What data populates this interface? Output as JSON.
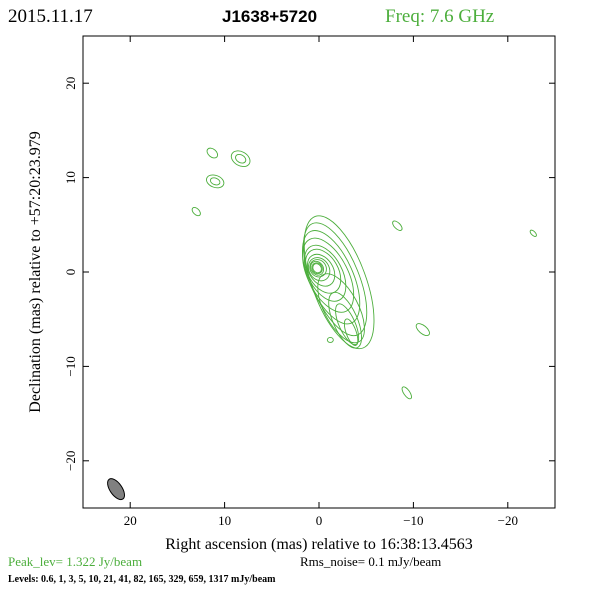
{
  "header": {
    "date": "2015.11.17",
    "source": "J1638+5720",
    "freq": "Freq: 7.6 GHz"
  },
  "footer": {
    "peak": "Peak_lev=  1.322 Jy/beam",
    "rms": "Rms_noise=  0.1 mJy/beam",
    "levels": "Levels: 0.6,   1,   3,   5,   10,   21,   41,   82,  165,  329,  659,  1317 mJy/beam"
  },
  "colors": {
    "contour": "#4cae3c",
    "beam": "#808080",
    "axes": "#000000"
  },
  "chart_data": {
    "type": "contour-map",
    "xlabel": "Right ascension (mas) relative to 16:38:13.4563",
    "ylabel": "Declination (mas) relative to +57:20:23.979",
    "xlim": [
      25,
      -25
    ],
    "ylim": [
      -25,
      25
    ],
    "xticks": [
      20,
      10,
      0,
      -10,
      -20
    ],
    "xtick_labels": [
      "20",
      "10",
      "0",
      "−10",
      "−20"
    ],
    "yticks": [
      20,
      10,
      0,
      -10,
      -20
    ],
    "ytick_labels": [
      "20",
      "10",
      "0",
      "−10",
      "−20"
    ],
    "levels_mJy_per_beam": [
      0.6,
      1,
      3,
      5,
      10,
      21,
      41,
      82,
      165,
      329,
      659,
      1317
    ],
    "peak_Jy_per_beam": 1.322,
    "rms_noise_mJy_per_beam": 0.1,
    "core": {
      "x": 0.2,
      "y": 0.4
    },
    "jet_direction": "south-west",
    "beam": {
      "x": 21.5,
      "y": -23.0
    },
    "outlying_components": [
      {
        "x": 11.3,
        "y": 12.6
      },
      {
        "x": 11.0,
        "y": 9.6
      },
      {
        "x": 8.3,
        "y": 12.0
      },
      {
        "x": 13.0,
        "y": 6.4
      },
      {
        "x": -8.3,
        "y": 4.9
      },
      {
        "x": -11.0,
        "y": -6.1
      },
      {
        "x": -9.3,
        "y": -12.8
      },
      {
        "x": -22.7,
        "y": 4.1
      }
    ]
  }
}
